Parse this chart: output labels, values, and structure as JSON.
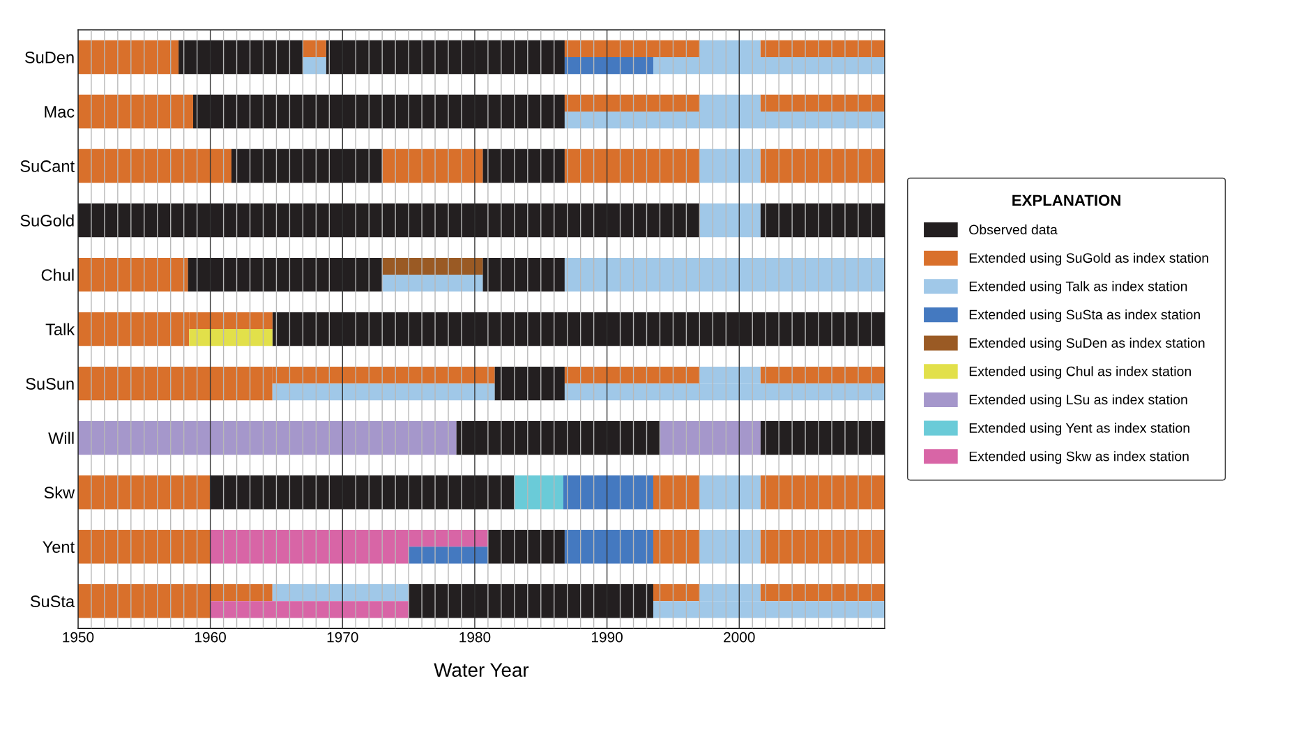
{
  "chart_data": {
    "type": "bar",
    "orientation": "horizontal",
    "xlabel": "Water Year",
    "legend_title": "EXPLANATION",
    "legend": "right",
    "grid": "x",
    "categories": [
      "SuDen",
      "Mac",
      "SuCant",
      "SuGold",
      "Chul",
      "Talk",
      "SuSun",
      "Will",
      "Skw",
      "Yent",
      "SuSta"
    ],
    "xlim": [
      1950,
      2011
    ],
    "xticks": [
      1950,
      {
        "value": 1951,
        "label": null
      },
      {
        "value": 1952,
        "label": null
      },
      {
        "value": 1953,
        "label": null
      },
      {
        "value": 1954,
        "label": null
      },
      {
        "value": 1955,
        "label": null
      },
      {
        "value": 1956,
        "label": null
      },
      {
        "value": 1957,
        "label": null
      },
      {
        "value": 1958,
        "label": null
      },
      {
        "value": 1959,
        "label": null
      },
      1960,
      {
        "value": 1961,
        "label": null
      },
      {
        "value": 1962,
        "label": null
      },
      {
        "value": 1963,
        "label": null
      },
      {
        "value": 1964,
        "label": null
      },
      {
        "value": 1965,
        "label": null
      },
      {
        "value": 1966,
        "label": null
      },
      {
        "value": 1967,
        "label": null
      },
      {
        "value": 1968,
        "label": null
      },
      {
        "value": 1969,
        "label": null
      },
      1970,
      {
        "value": 1971,
        "label": null
      },
      {
        "value": 1972,
        "label": null
      },
      {
        "value": 1973,
        "label": null
      },
      {
        "value": 1974,
        "label": null
      },
      {
        "value": 1975,
        "label": null
      },
      {
        "value": 1976,
        "label": null
      },
      {
        "value": 1977,
        "label": null
      },
      {
        "value": 1978,
        "label": null
      },
      {
        "value": 1979,
        "label": null
      },
      1980,
      {
        "value": 1981,
        "label": null
      },
      {
        "value": 1982,
        "label": null
      },
      {
        "value": 1983,
        "label": null
      },
      {
        "value": 1984,
        "label": null
      },
      {
        "value": 1985,
        "label": null
      },
      {
        "value": 1986,
        "label": null
      },
      {
        "value": 1987,
        "label": null
      },
      {
        "value": 1988,
        "label": null
      },
      {
        "value": 1989,
        "label": null
      },
      1990,
      {
        "value": 1991,
        "label": null
      },
      {
        "value": 1992,
        "label": null
      },
      {
        "value": 1993,
        "label": null
      },
      {
        "value": 1994,
        "label": null
      },
      {
        "value": 1995,
        "label": null
      },
      {
        "value": 1996,
        "label": null
      },
      {
        "value": 1997,
        "label": null
      },
      {
        "value": 1998,
        "label": null
      },
      {
        "value": 1999,
        "label": null
      },
      2000,
      {
        "value": 2001,
        "label": null
      },
      {
        "value": 2002,
        "label": null
      },
      {
        "value": 2003,
        "label": null
      },
      {
        "value": 2004,
        "label": null
      },
      {
        "value": 2005,
        "label": null
      },
      {
        "value": 2006,
        "label": null
      },
      {
        "value": 2007,
        "label": null
      },
      {
        "value": 2008,
        "label": null
      },
      {
        "value": 2009,
        "label": null
      },
      {
        "value": 2010,
        "label": null
      }
    ],
    "series": [
      {
        "name": "Observed data",
        "color": "#231f20",
        "base": [
          1957.6,
          1958.7,
          1961.6,
          1950,
          1958.3,
          1964.7,
          1981.5,
          1978.6,
          1960,
          1981,
          1975
        ],
        "values": [
          9.4,
          28.1,
          11.4,
          47,
          14.7,
          46.3,
          5.3,
          15.4,
          23,
          5.8,
          18.5
        ]
      },
      {
        "color": "#231f20",
        "base": [
          1968.75,
          null,
          1980.6,
          2001.6,
          1980.6,
          null,
          null,
          2001.6,
          null,
          null,
          null
        ],
        "values": [
          18.05,
          null,
          6.2,
          9.4,
          6.2,
          null,
          null,
          9.4,
          null,
          null,
          null
        ]
      },
      {
        "name": "Extended using SuGold as index station",
        "color": "#d9702b",
        "base": [
          1950,
          1950,
          1950,
          null,
          1950,
          1950,
          1950,
          null,
          1950,
          1950,
          1950
        ],
        "values": [
          7.6,
          8.7,
          11.6,
          null,
          8.3,
          8.4,
          14.7,
          null,
          10,
          10,
          10
        ]
      },
      {
        "color": "#d9702b",
        "base": [
          null,
          null,
          1973,
          null,
          null,
          null,
          null,
          null,
          1993.5,
          1993.5,
          null
        ],
        "values": [
          null,
          null,
          7.6,
          null,
          null,
          null,
          null,
          null,
          3.5,
          3.5,
          null
        ]
      },
      {
        "color": "#d9702b",
        "base": [
          null,
          null,
          1986.8,
          null,
          null,
          null,
          null,
          null,
          2001.6,
          2001.6,
          null
        ],
        "values": [
          null,
          null,
          10.2,
          null,
          null,
          null,
          null,
          null,
          9.4,
          9.4,
          null
        ]
      },
      {
        "color": "#d9702b",
        "base": [
          null,
          null,
          2001.6,
          null,
          null,
          null,
          null,
          null,
          null,
          null,
          null
        ],
        "values": [
          null,
          null,
          9.4,
          null,
          null,
          null,
          null,
          null,
          null,
          null,
          null
        ]
      },
      {
        "color": "#d9702b",
        "base": [
          1967,
          1986.8,
          null,
          null,
          null,
          1958.4,
          1964.7,
          null,
          null,
          null,
          1960
        ],
        "values": [
          1.75,
          10.2,
          null,
          null,
          null,
          6.3,
          16.8,
          null,
          null,
          null,
          4.7
        ]
      },
      {
        "color": "#d9702b",
        "base": [
          1986.8,
          2001.6,
          null,
          null,
          null,
          null,
          1986.8,
          null,
          null,
          null,
          1993.5
        ],
        "values": [
          10.2,
          9.4,
          null,
          null,
          null,
          null,
          10.2,
          null,
          null,
          null,
          3.5
        ]
      },
      {
        "color": "#d9702b",
        "base": [
          2001.6,
          null,
          null,
          null,
          null,
          null,
          2001.6,
          null,
          null,
          null,
          2001.6
        ],
        "values": [
          9.4,
          null,
          null,
          null,
          null,
          null,
          9.4,
          null,
          null,
          null,
          9.4
        ]
      },
      {
        "name": "Extended using Talk as index station",
        "color": "#a0c8e8",
        "base": [
          null,
          null,
          1997,
          1997,
          1986.8,
          null,
          null,
          null,
          1997,
          1997,
          null
        ],
        "values": [
          null,
          null,
          4.6,
          4.6,
          24.2,
          null,
          null,
          null,
          4.6,
          4.6,
          null
        ]
      },
      {
        "color": "#a0c8e8",
        "base": [
          1997,
          1997,
          null,
          null,
          null,
          null,
          1997,
          null,
          null,
          null,
          1964.7
        ],
        "values": [
          4.6,
          4.6,
          null,
          null,
          null,
          null,
          4.6,
          null,
          null,
          null,
          10.3
        ]
      },
      {
        "color": "#a0c8e8",
        "base": [
          null,
          null,
          null,
          null,
          null,
          null,
          null,
          null,
          null,
          null,
          1997
        ],
        "values": [
          null,
          null,
          null,
          null,
          null,
          null,
          null,
          null,
          null,
          null,
          4.6
        ]
      },
      {
        "color": "#a0c8e8",
        "base": [
          1967,
          1986.8,
          null,
          null,
          null,
          null,
          1964.7,
          null,
          null,
          null,
          1993.5
        ],
        "values": [
          1.75,
          24.2,
          null,
          null,
          null,
          null,
          16.8,
          null,
          null,
          null,
          17.5
        ]
      },
      {
        "color": "#a0c8e8",
        "base": [
          1993.5,
          null,
          null,
          null,
          null,
          null,
          1986.8,
          null,
          null,
          null,
          null
        ],
        "values": [
          17.5,
          null,
          null,
          null,
          null,
          null,
          24.2,
          null,
          null,
          null,
          null
        ]
      },
      {
        "name": "Extended using SuSta as index station",
        "color": "#4479c0",
        "base": [
          null,
          null,
          null,
          null,
          null,
          null,
          null,
          null,
          1986.7,
          1986.8,
          null
        ],
        "values": [
          null,
          null,
          null,
          null,
          null,
          null,
          null,
          null,
          6.8,
          6.7,
          null
        ]
      },
      {
        "color": "#4479c0",
        "base": [
          1986.8,
          null,
          null,
          null,
          null,
          null,
          null,
          null,
          null,
          null,
          null
        ],
        "values": [
          6.7,
          null,
          null,
          null,
          null,
          null,
          null,
          null,
          null,
          null,
          null
        ]
      },
      {
        "name": "Extended using SuDen as index station",
        "color": "#9a5a24",
        "base": [
          null,
          null,
          null,
          null,
          1973,
          null,
          null,
          null,
          null,
          null,
          null
        ],
        "values": [
          null,
          null,
          null,
          null,
          7.6,
          null,
          null,
          null,
          null,
          null,
          null
        ]
      },
      {
        "color": "#a0c8e8",
        "base": [
          null,
          null,
          null,
          null,
          1973,
          null,
          null,
          null,
          null,
          null,
          null
        ],
        "values": [
          null,
          null,
          null,
          null,
          7.6,
          null,
          null,
          null,
          null,
          null,
          null
        ]
      },
      {
        "name": "Extended using Chul as index station",
        "color": "#e2e04a",
        "base": [
          null,
          null,
          null,
          null,
          null,
          1958.4,
          null,
          null,
          null,
          null,
          null
        ],
        "values": [
          null,
          null,
          null,
          null,
          null,
          6.3,
          null,
          null,
          null,
          null,
          null
        ]
      },
      {
        "name": "Extended using LSu as index station",
        "color": "#a597cb",
        "base": [
          null,
          null,
          null,
          null,
          null,
          null,
          null,
          1950,
          null,
          null,
          null
        ],
        "values": [
          null,
          null,
          null,
          null,
          null,
          null,
          null,
          28.6,
          null,
          null,
          null
        ]
      },
      {
        "color": "#a597cb",
        "base": [
          null,
          null,
          null,
          null,
          null,
          null,
          null,
          1994,
          null,
          null,
          null
        ],
        "values": [
          null,
          null,
          null,
          null,
          null,
          null,
          null,
          7.6,
          null,
          null,
          null
        ]
      },
      {
        "name": "Extended using Yent as index station",
        "color": "#6acbd8",
        "base": [
          null,
          null,
          null,
          null,
          null,
          null,
          null,
          null,
          1983,
          null,
          null
        ],
        "values": [
          null,
          null,
          null,
          null,
          null,
          null,
          null,
          null,
          3.7,
          null,
          null
        ]
      },
      {
        "name": "Extended using Skw as index station",
        "color": "#d865a6",
        "base": [
          null,
          null,
          null,
          null,
          null,
          null,
          null,
          null,
          null,
          1960,
          null
        ],
        "values": [
          null,
          null,
          null,
          null,
          null,
          null,
          null,
          null,
          null,
          15,
          null
        ]
      },
      {
        "color": "#d865a6",
        "base": [
          null,
          null,
          null,
          null,
          null,
          null,
          null,
          null,
          null,
          1975,
          null
        ],
        "values": [
          null,
          null,
          null,
          null,
          null,
          null,
          null,
          null,
          null,
          6,
          null
        ]
      },
      {
        "color": "#d865a6",
        "base": [
          null,
          null,
          null,
          null,
          null,
          null,
          null,
          null,
          null,
          null,
          1960
        ],
        "values": [
          null,
          null,
          null,
          null,
          null,
          null,
          null,
          null,
          null,
          null,
          15
        ]
      },
      {
        "color": "#4479c0",
        "base": [
          null,
          null,
          null,
          null,
          null,
          null,
          null,
          null,
          null,
          1975,
          null
        ],
        "values": [
          null,
          null,
          null,
          null,
          null,
          null,
          null,
          null,
          null,
          6,
          null
        ]
      }
    ]
  }
}
